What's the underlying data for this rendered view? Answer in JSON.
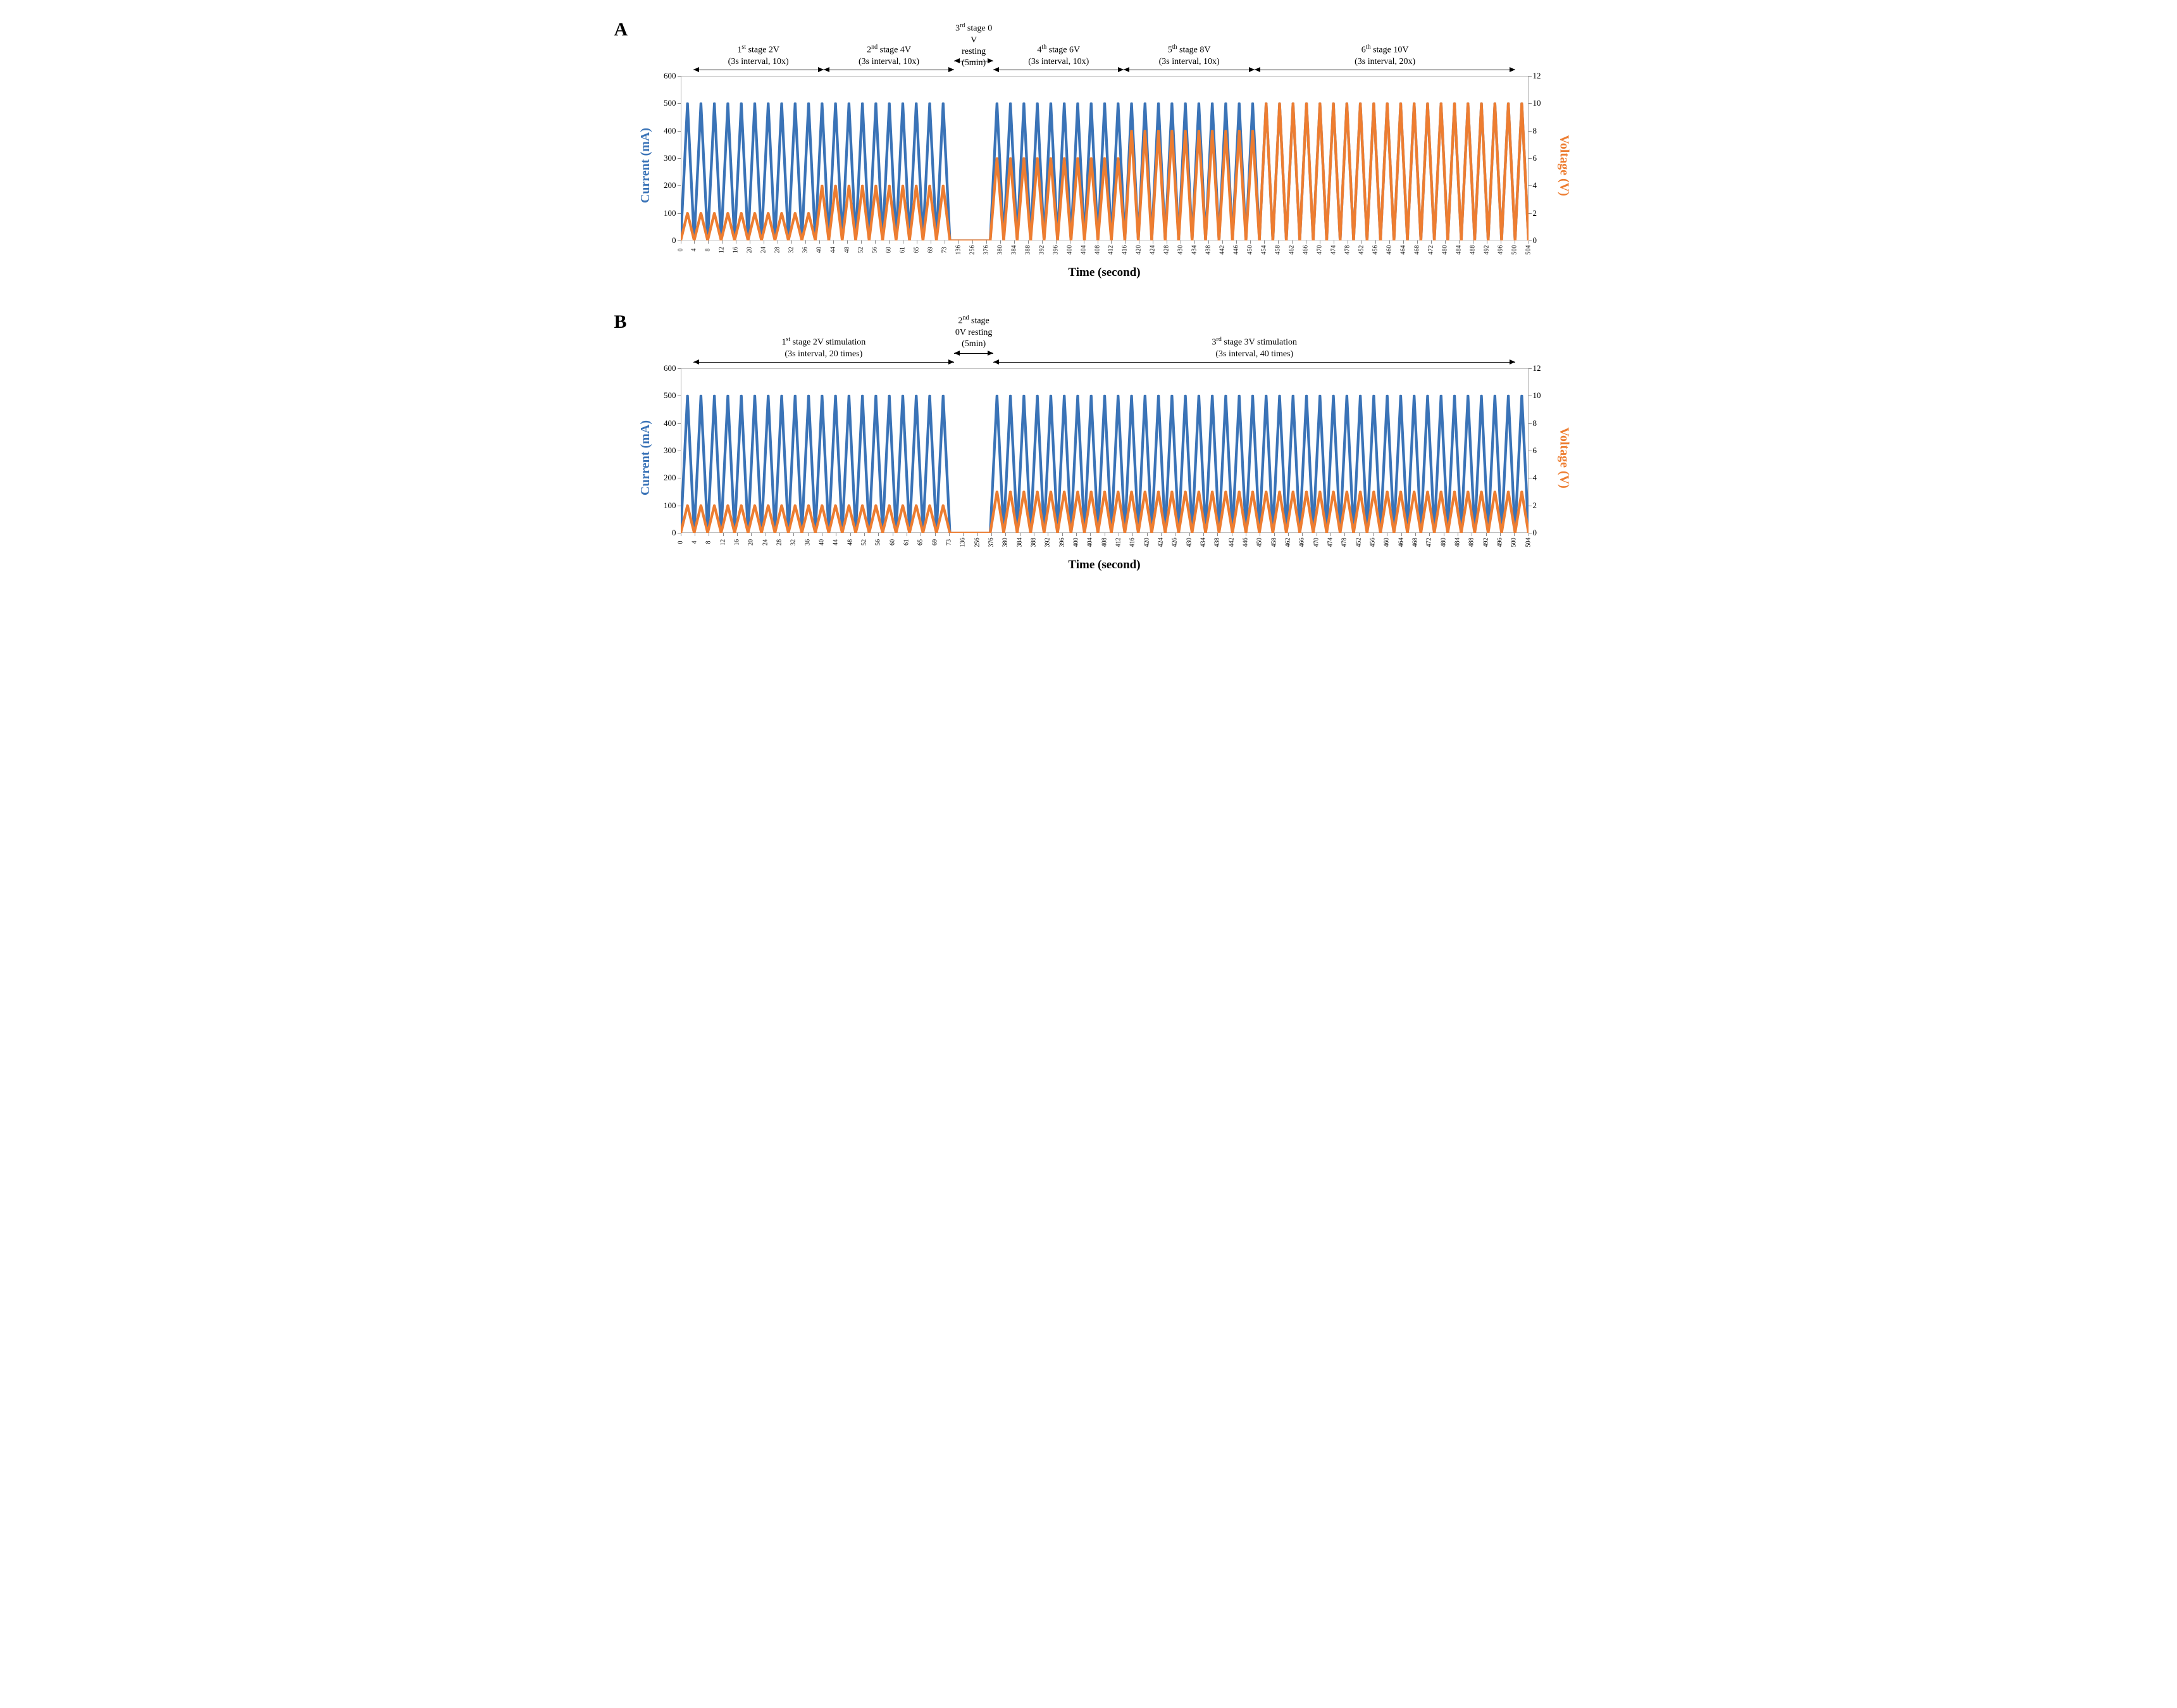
{
  "colors": {
    "current": "#3a73b7",
    "voltage": "#ed7d31",
    "axis": "#808080",
    "background": "#ffffff",
    "text": "#000000"
  },
  "line_width": 3.2,
  "panelA": {
    "label": "A",
    "y_left": {
      "label": "Current (mA)",
      "min": 0,
      "max": 600,
      "step": 100
    },
    "y_right": {
      "label": "Voltage (V)",
      "min": 0,
      "max": 12,
      "step": 2
    },
    "x_label": "Time (second)",
    "x_ticks": [
      0,
      4,
      8,
      12,
      16,
      20,
      24,
      28,
      32,
      36,
      40,
      44,
      48,
      52,
      56,
      60,
      61,
      65,
      69,
      73,
      136,
      256,
      376,
      380,
      384,
      388,
      392,
      396,
      400,
      404,
      408,
      412,
      416,
      420,
      424,
      428,
      430,
      434,
      438,
      442,
      446,
      450,
      454,
      458,
      462,
      466,
      470,
      474,
      478,
      452,
      456,
      460,
      464,
      468,
      472,
      480,
      484,
      488,
      492,
      496,
      500,
      504
    ],
    "stages": [
      {
        "label_html": "1<sup>st</sup> stage 2V<br>(3s interval, 10x)",
        "start": 0,
        "end": 10,
        "centerTop": 38,
        "arrowTop": 80
      },
      {
        "label_html": "2<sup>nd</sup> stage 4V<br>(3s interval, 10x)",
        "start": 10,
        "end": 20,
        "centerTop": 38,
        "arrowTop": 80
      },
      {
        "label_html": "3<sup>rd</sup> stage 0 V<br>resting<br>(5min)",
        "start": 20,
        "end": 23,
        "centerTop": 4,
        "arrowTop": 66
      },
      {
        "label_html": "4<sup>th</sup> stage 6V<br>(3s interval, 10x)",
        "start": 23,
        "end": 33,
        "centerTop": 38,
        "arrowTop": 80
      },
      {
        "label_html": "5<sup>th</sup> stage 8V<br>(3s interval, 10x)",
        "start": 33,
        "end": 43,
        "centerTop": 38,
        "arrowTop": 80
      },
      {
        "label_html": "6<sup>th</sup> stage 10V<br>(3s interval, 20x)",
        "start": 43,
        "end": 63,
        "centerTop": 38,
        "arrowTop": 80
      }
    ],
    "segments": [
      {
        "type": "pulses",
        "count": 10,
        "current_peak": 500,
        "voltage_peak": 2
      },
      {
        "type": "pulses",
        "count": 10,
        "current_peak": 500,
        "voltage_peak": 4
      },
      {
        "type": "rest",
        "count": 3
      },
      {
        "type": "pulses",
        "count": 10,
        "current_peak": 500,
        "voltage_peak": 6
      },
      {
        "type": "pulses",
        "count": 10,
        "current_peak": 500,
        "voltage_peak": 8
      },
      {
        "type": "pulses",
        "count": 20,
        "current_peak": 500,
        "voltage_peak": 10
      }
    ]
  },
  "panelB": {
    "label": "B",
    "y_left": {
      "label": "Current (mA)",
      "min": 0,
      "max": 600,
      "step": 100
    },
    "y_right": {
      "label": "Voltage (V)",
      "min": 0,
      "max": 12,
      "step": 2
    },
    "x_label": "Time (second)",
    "x_ticks": [
      0,
      4,
      8,
      12,
      16,
      20,
      24,
      28,
      32,
      36,
      40,
      44,
      48,
      52,
      56,
      60,
      61,
      65,
      69,
      73,
      136,
      256,
      376,
      380,
      384,
      388,
      392,
      396,
      400,
      404,
      408,
      412,
      416,
      420,
      424,
      426,
      430,
      434,
      438,
      442,
      446,
      450,
      458,
      462,
      466,
      470,
      474,
      478,
      452,
      456,
      460,
      464,
      468,
      472,
      480,
      484,
      488,
      492,
      496,
      500,
      504
    ],
    "stages": [
      {
        "label_html": "1<sup>st</sup> stage 2V stimulation<br>(3s interval, 20 times)",
        "start": 0,
        "end": 20,
        "centerTop": 38,
        "arrowTop": 80
      },
      {
        "label_html": "2<sup>nd</sup> stage<br>0V resting<br>(5min)",
        "start": 20,
        "end": 23,
        "centerTop": 4,
        "arrowTop": 66
      },
      {
        "label_html": "3<sup>rd</sup> stage 3V stimulation<br>(3s interval, 40 times)",
        "start": 23,
        "end": 63,
        "centerTop": 38,
        "arrowTop": 80
      }
    ],
    "segments": [
      {
        "type": "pulses",
        "count": 20,
        "current_peak": 500,
        "voltage_peak": 2
      },
      {
        "type": "rest",
        "count": 3
      },
      {
        "type": "pulses",
        "count": 40,
        "current_peak": 500,
        "voltage_peak": 3
      }
    ]
  }
}
